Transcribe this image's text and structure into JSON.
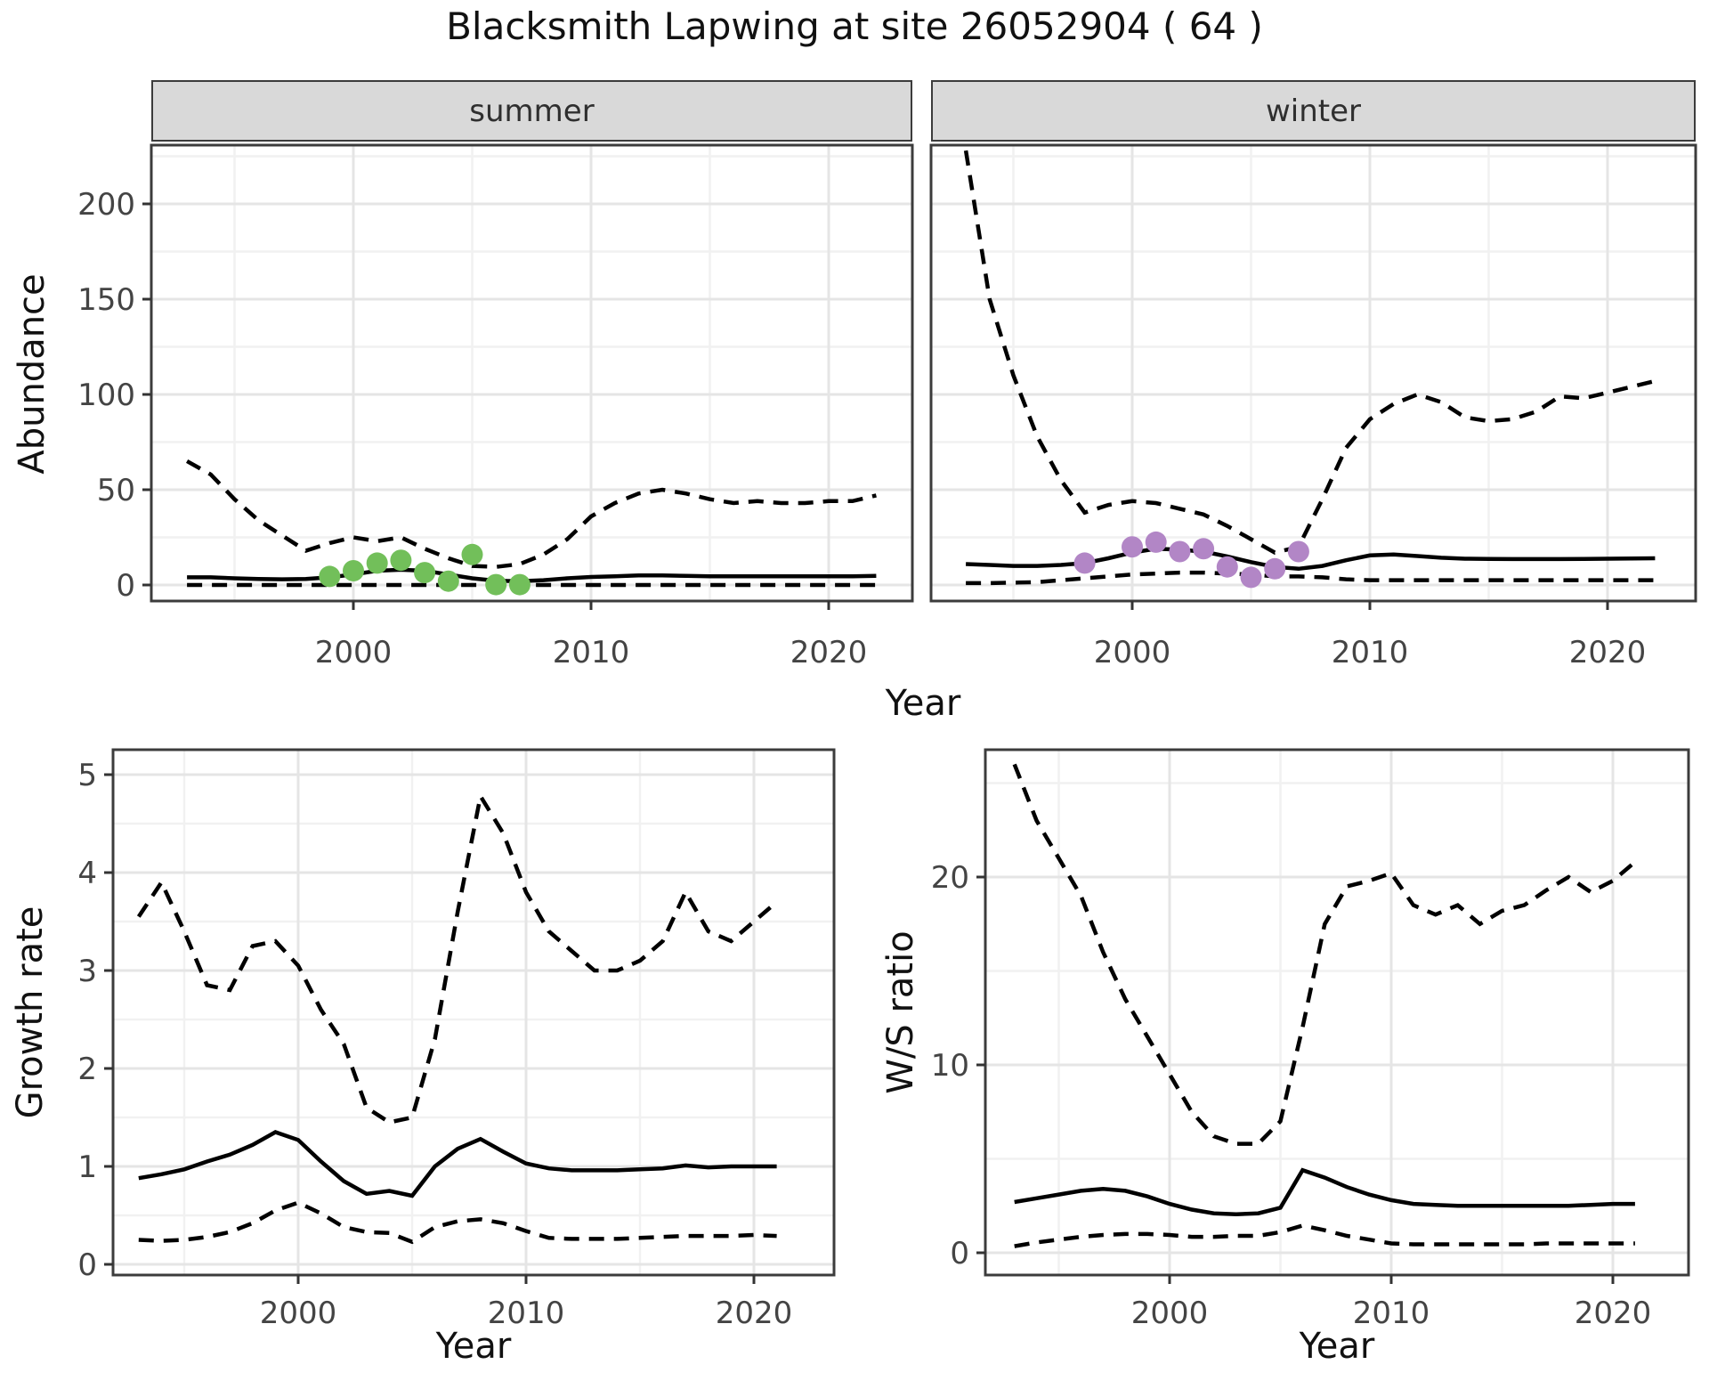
{
  "title": "Blacksmith Lapwing at site 26052904 ( 64 )",
  "facets": [
    {
      "label": "summer"
    },
    {
      "label": "winter"
    }
  ],
  "axis_labels": {
    "abundance": "Abundance",
    "year": "Year",
    "growth_rate": "Growth rate",
    "ws_ratio": "W/S ratio"
  },
  "colors": {
    "summer_points": "#72bf5a",
    "winter_points": "#b286c6",
    "line": "#000000",
    "strip_bg": "#d9d9d9",
    "grid_major": "#e5e5e5",
    "grid_minor": "#f1f1f1",
    "panel_border": "#3c3c3c",
    "tick_text": "#444444"
  },
  "chart_data": [
    {
      "id": "abundance_summer",
      "type": "line",
      "facet": "summer",
      "xlabel": "Year",
      "ylabel": "Abundance",
      "x_ticks": [
        2000,
        2010,
        2020
      ],
      "x_minor": [
        1995,
        2005,
        2015
      ],
      "y_ticks": [
        0,
        50,
        100,
        150,
        200
      ],
      "y_minor": [
        25,
        75,
        125,
        175,
        225
      ],
      "xlim": [
        1991.5,
        2023.5
      ],
      "ylim": [
        0,
        230
      ],
      "years": [
        1993,
        1994,
        1995,
        1996,
        1997,
        1998,
        1999,
        2000,
        2001,
        2002,
        2003,
        2004,
        2005,
        2006,
        2007,
        2008,
        2009,
        2010,
        2011,
        2012,
        2013,
        2014,
        2015,
        2016,
        2017,
        2018,
        2019,
        2020,
        2021,
        2022
      ],
      "series": [
        {
          "name": "median",
          "style": "solid",
          "values": [
            4,
            4,
            3.5,
            3.2,
            3,
            3.2,
            4,
            5.5,
            7.5,
            8,
            7.5,
            5.5,
            3.5,
            2.2,
            2,
            2.5,
            3.5,
            4.2,
            4.6,
            5,
            5,
            4.8,
            4.6,
            4.6,
            4.6,
            4.6,
            4.6,
            4.6,
            4.6,
            4.8
          ]
        },
        {
          "name": "upper_95ci",
          "style": "dashed",
          "values": [
            65,
            58,
            45,
            34,
            26,
            18,
            22,
            25,
            23,
            25,
            19,
            14,
            10,
            9.5,
            11,
            16,
            24,
            36,
            43,
            48,
            50,
            48,
            45,
            43,
            44,
            43,
            43,
            44,
            44,
            47
          ]
        },
        {
          "name": "lower_95ci",
          "style": "dashed",
          "values": [
            0,
            0,
            0,
            0,
            0,
            0,
            0,
            0,
            0,
            0,
            0,
            0,
            0,
            0,
            0,
            0,
            0,
            0,
            0,
            0,
            0,
            0,
            0,
            0,
            0,
            0,
            0,
            0,
            0,
            0
          ]
        }
      ],
      "observed_points": {
        "color_key": "summer_points",
        "data": [
          [
            1999,
            4.5
          ],
          [
            2000,
            7.5
          ],
          [
            2001,
            11.5
          ],
          [
            2002,
            13
          ],
          [
            2003,
            6.5
          ],
          [
            2004,
            2
          ],
          [
            2005,
            16
          ],
          [
            2006,
            0.2
          ],
          [
            2007,
            0.2
          ]
        ]
      }
    },
    {
      "id": "abundance_winter",
      "type": "line",
      "facet": "winter",
      "xlabel": "Year",
      "ylabel": "Abundance",
      "x_ticks": [
        2000,
        2010,
        2020
      ],
      "x_minor": [
        1995,
        2005,
        2015
      ],
      "y_ticks": [
        0,
        50,
        100,
        150,
        200
      ],
      "y_minor": [
        25,
        75,
        125,
        175,
        225
      ],
      "xlim": [
        1991.5,
        2023.5
      ],
      "ylim": [
        0,
        230
      ],
      "years": [
        1993,
        1994,
        1995,
        1996,
        1997,
        1998,
        1999,
        2000,
        2001,
        2002,
        2003,
        2004,
        2005,
        2006,
        2007,
        2008,
        2009,
        2010,
        2011,
        2012,
        2013,
        2014,
        2015,
        2016,
        2017,
        2018,
        2019,
        2020,
        2021,
        2022
      ],
      "series": [
        {
          "name": "median",
          "style": "solid",
          "values": [
            11,
            10.5,
            10,
            10,
            10.5,
            11.5,
            14,
            17,
            19,
            18.5,
            17.5,
            15,
            12,
            9.5,
            8.5,
            10,
            13,
            15.5,
            16,
            15.2,
            14.3,
            13.8,
            13.7,
            13.6,
            13.6,
            13.6,
            13.7,
            13.8,
            13.9,
            14
          ]
        },
        {
          "name": "upper_95ci",
          "style": "dashed",
          "values": [
            228,
            150,
            110,
            78,
            55,
            38,
            42,
            44,
            43,
            40,
            37,
            31,
            24,
            17,
            20,
            45,
            72,
            87,
            95,
            100,
            96,
            88,
            86,
            87,
            91,
            99,
            98,
            101,
            104,
            107
          ]
        },
        {
          "name": "lower_95ci",
          "style": "dashed",
          "values": [
            1,
            1,
            1.2,
            1.5,
            2.5,
            3.5,
            4.5,
            5.5,
            6,
            6.5,
            6.5,
            6,
            5.5,
            4.5,
            4.5,
            4,
            3,
            2.5,
            2.5,
            2.5,
            2.5,
            2.5,
            2.5,
            2.5,
            2.5,
            2.5,
            2.5,
            2.5,
            2.5,
            2.5
          ]
        }
      ],
      "observed_points": {
        "color_key": "winter_points",
        "data": [
          [
            1998,
            11.5
          ],
          [
            2000,
            20
          ],
          [
            2001,
            22.5
          ],
          [
            2002,
            17.5
          ],
          [
            2003,
            19
          ],
          [
            2004,
            9.5
          ],
          [
            2005,
            4
          ],
          [
            2006,
            8.5
          ],
          [
            2007,
            17.5
          ]
        ]
      }
    },
    {
      "id": "growth_rate",
      "type": "line",
      "facet": null,
      "xlabel": "Year",
      "ylabel": "Growth rate",
      "x_ticks": [
        2000,
        2010,
        2020
      ],
      "x_minor": [
        1995,
        2005,
        2015
      ],
      "y_ticks": [
        0,
        1,
        2,
        3,
        4,
        5
      ],
      "y_minor": [
        0.5,
        1.5,
        2.5,
        3.5,
        4.5
      ],
      "xlim": [
        1991.9,
        2023.5
      ],
      "ylim": [
        0,
        5.25
      ],
      "years": [
        1993,
        1994,
        1995,
        1996,
        1997,
        1998,
        1999,
        2000,
        2001,
        2002,
        2003,
        2004,
        2005,
        2006,
        2007,
        2008,
        2009,
        2010,
        2011,
        2012,
        2013,
        2014,
        2015,
        2016,
        2017,
        2018,
        2019,
        2020,
        2021
      ],
      "series": [
        {
          "name": "median",
          "style": "solid",
          "values": [
            0.88,
            0.92,
            0.97,
            1.05,
            1.12,
            1.22,
            1.35,
            1.27,
            1.05,
            0.85,
            0.72,
            0.75,
            0.7,
            1.0,
            1.18,
            1.28,
            1.15,
            1.03,
            0.98,
            0.96,
            0.96,
            0.96,
            0.97,
            0.98,
            1.01,
            0.99,
            1.0,
            1.0,
            1.0
          ]
        },
        {
          "name": "upper_95ci",
          "style": "dashed",
          "values": [
            3.55,
            3.9,
            3.4,
            2.85,
            2.8,
            3.25,
            3.3,
            3.05,
            2.6,
            2.25,
            1.6,
            1.45,
            1.5,
            2.3,
            3.6,
            4.78,
            4.4,
            3.8,
            3.4,
            3.2,
            3.0,
            3.0,
            3.1,
            3.3,
            3.8,
            3.4,
            3.3,
            3.5,
            3.7
          ]
        },
        {
          "name": "lower_95ci",
          "style": "dashed",
          "values": [
            0.25,
            0.24,
            0.25,
            0.28,
            0.33,
            0.42,
            0.55,
            0.63,
            0.52,
            0.38,
            0.33,
            0.32,
            0.23,
            0.38,
            0.44,
            0.46,
            0.42,
            0.34,
            0.27,
            0.26,
            0.26,
            0.26,
            0.27,
            0.28,
            0.29,
            0.29,
            0.29,
            0.3,
            0.29
          ]
        }
      ],
      "observed_points": null
    },
    {
      "id": "ws_ratio",
      "type": "line",
      "facet": null,
      "xlabel": "Year",
      "ylabel": "W/S ratio",
      "x_ticks": [
        2000,
        2010,
        2020
      ],
      "x_minor": [
        1995,
        2005,
        2015
      ],
      "y_ticks": [
        0,
        10,
        20
      ],
      "y_minor": [
        5,
        15,
        25
      ],
      "xlim": [
        1991.7,
        2023.4
      ],
      "ylim": [
        0,
        26.8
      ],
      "years": [
        1993,
        1994,
        1995,
        1996,
        1997,
        1998,
        1999,
        2000,
        2001,
        2002,
        2003,
        2004,
        2005,
        2006,
        2007,
        2008,
        2009,
        2010,
        2011,
        2012,
        2013,
        2014,
        2015,
        2016,
        2017,
        2018,
        2019,
        2020,
        2021
      ],
      "series": [
        {
          "name": "median",
          "style": "solid",
          "values": [
            2.7,
            2.9,
            3.1,
            3.3,
            3.4,
            3.3,
            3.0,
            2.6,
            2.3,
            2.1,
            2.05,
            2.1,
            2.4,
            4.4,
            4.0,
            3.5,
            3.1,
            2.8,
            2.6,
            2.55,
            2.5,
            2.5,
            2.5,
            2.5,
            2.5,
            2.5,
            2.55,
            2.6,
            2.6
          ]
        },
        {
          "name": "upper_95ci",
          "style": "dashed",
          "values": [
            26,
            23,
            21,
            19,
            16,
            13.5,
            11.5,
            9.5,
            7.5,
            6.2,
            5.8,
            5.8,
            7,
            12,
            17.5,
            19.5,
            19.8,
            20.2,
            18.5,
            18,
            18.5,
            17.5,
            18.2,
            18.5,
            19.3,
            20,
            19.2,
            19.8,
            20.8
          ]
        },
        {
          "name": "lower_95ci",
          "style": "dashed",
          "values": [
            0.35,
            0.55,
            0.7,
            0.85,
            0.95,
            1.0,
            1.0,
            0.95,
            0.85,
            0.85,
            0.9,
            0.9,
            1.1,
            1.45,
            1.2,
            0.9,
            0.7,
            0.5,
            0.45,
            0.45,
            0.45,
            0.45,
            0.45,
            0.45,
            0.5,
            0.5,
            0.5,
            0.5,
            0.5
          ]
        }
      ],
      "observed_points": null
    }
  ]
}
